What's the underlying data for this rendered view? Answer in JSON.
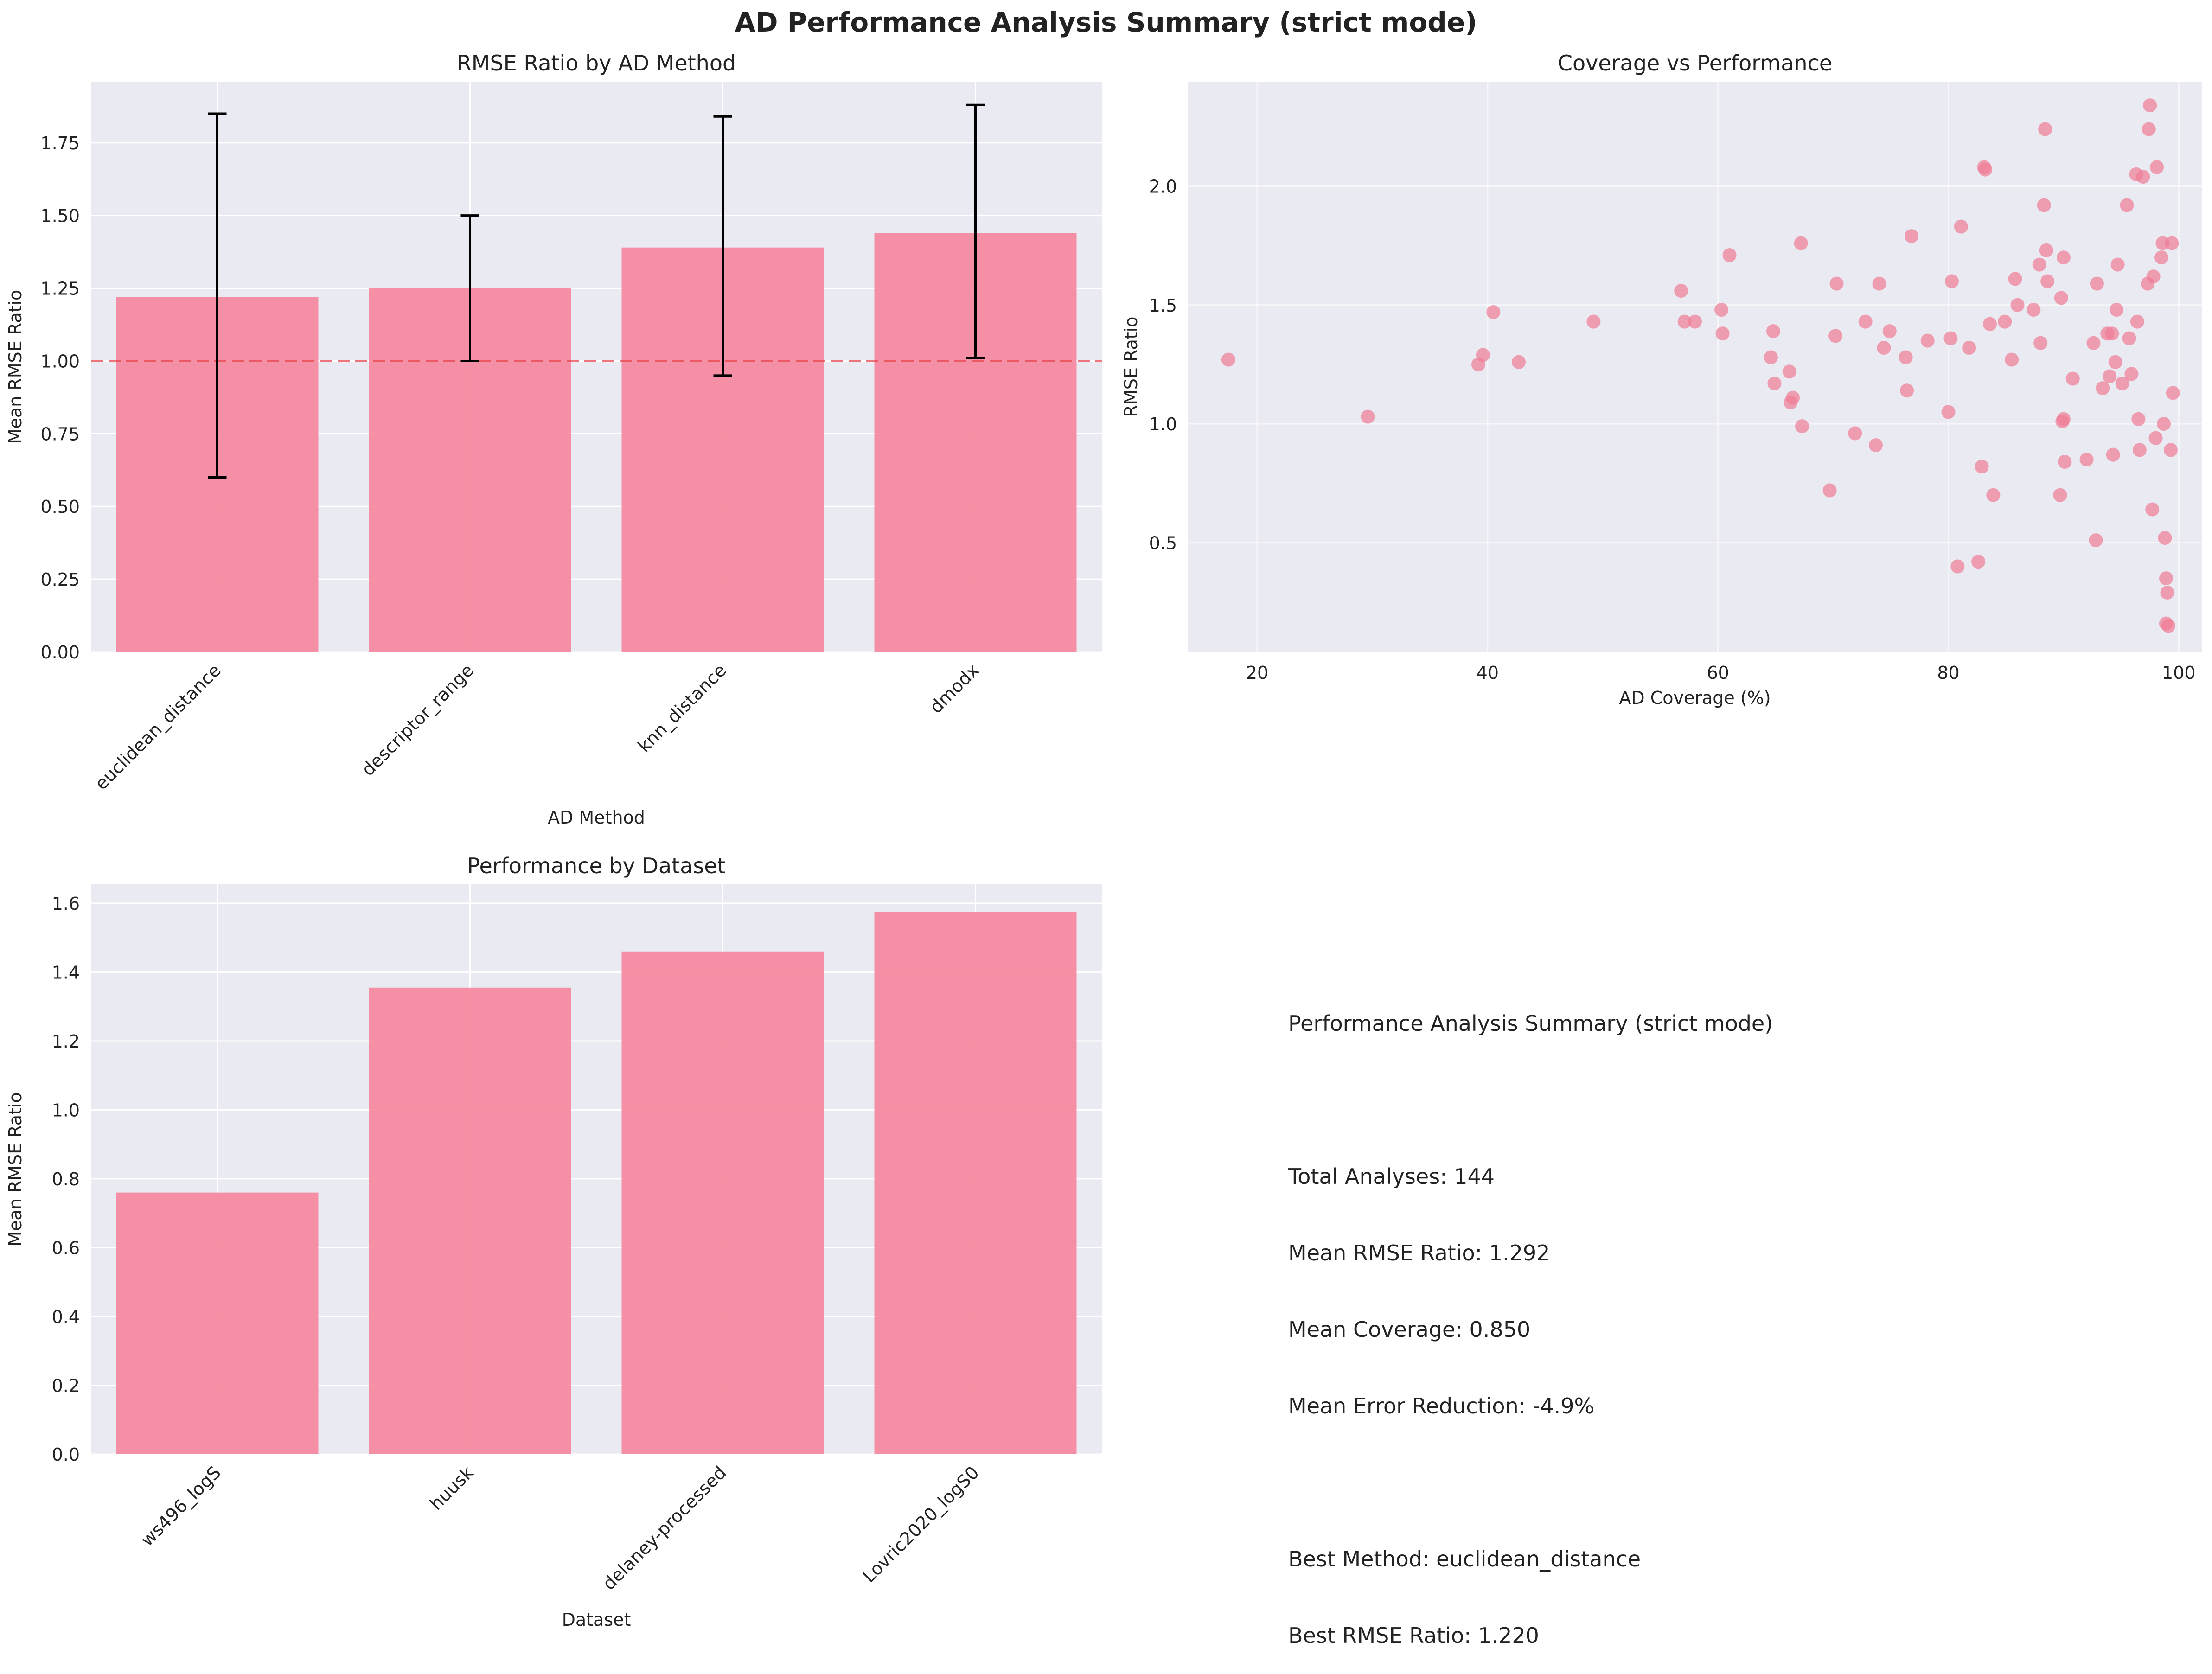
{
  "title": "AD Performance Analysis Summary (strict mode)",
  "colors": {
    "bar": "#f48aa0",
    "panel_bg": "#eaeaf2",
    "grid": "#ffffff",
    "reference_line": "#e8474f",
    "errorbar": "#000000",
    "point": "#f07c96"
  },
  "chart_data": [
    {
      "type": "bar",
      "title": "RMSE Ratio by AD Method",
      "xlabel": "AD Method",
      "ylabel": "Mean RMSE Ratio",
      "categories": [
        "euclidean_distance",
        "descriptor_range",
        "knn_distance",
        "dmodx"
      ],
      "values": [
        1.22,
        1.25,
        1.39,
        1.44
      ],
      "error_low": [
        0.6,
        1.0,
        0.95,
        1.01
      ],
      "error_high": [
        1.85,
        1.5,
        1.84,
        1.88
      ],
      "reference_line": 1.0,
      "ylim": [
        0,
        1.96
      ],
      "yticks": [
        "0.00",
        "0.25",
        "0.50",
        "0.75",
        "1.00",
        "1.25",
        "1.50",
        "1.75"
      ],
      "grid": true
    },
    {
      "type": "scatter",
      "title": "Coverage vs Performance",
      "xlabel": "AD Coverage (%)",
      "ylabel": "RMSE Ratio",
      "xlim": [
        14,
        102
      ],
      "ylim": [
        0.04,
        2.44
      ],
      "xticks": [
        "20",
        "40",
        "60",
        "80",
        "100"
      ],
      "yticks": [
        "0.5",
        "1.0",
        "1.5",
        "2.0"
      ],
      "grid": true,
      "points": [
        [
          17.5,
          1.27
        ],
        [
          29.6,
          1.03
        ],
        [
          39.2,
          1.25
        ],
        [
          39.6,
          1.29
        ],
        [
          40.5,
          1.47
        ],
        [
          42.7,
          1.26
        ],
        [
          49.2,
          1.43
        ],
        [
          56.8,
          1.56
        ],
        [
          57.1,
          1.43
        ],
        [
          58.0,
          1.43
        ],
        [
          60.3,
          1.48
        ],
        [
          60.4,
          1.38
        ],
        [
          61.0,
          1.71
        ],
        [
          64.6,
          1.28
        ],
        [
          64.8,
          1.39
        ],
        [
          64.9,
          1.17
        ],
        [
          66.2,
          1.22
        ],
        [
          66.3,
          1.09
        ],
        [
          66.5,
          1.11
        ],
        [
          67.2,
          1.76
        ],
        [
          67.3,
          0.99
        ],
        [
          69.7,
          0.72
        ],
        [
          70.2,
          1.37
        ],
        [
          70.3,
          1.59
        ],
        [
          71.9,
          0.96
        ],
        [
          72.8,
          1.43
        ],
        [
          73.7,
          0.91
        ],
        [
          74.0,
          1.59
        ],
        [
          74.4,
          1.32
        ],
        [
          74.9,
          1.39
        ],
        [
          76.3,
          1.28
        ],
        [
          76.4,
          1.14
        ],
        [
          76.8,
          1.79
        ],
        [
          78.2,
          1.35
        ],
        [
          80.0,
          1.05
        ],
        [
          80.2,
          1.36
        ],
        [
          80.3,
          1.6
        ],
        [
          80.8,
          0.4
        ],
        [
          81.1,
          1.83
        ],
        [
          81.8,
          1.32
        ],
        [
          82.6,
          0.42
        ],
        [
          82.9,
          0.82
        ],
        [
          83.1,
          2.08
        ],
        [
          83.2,
          2.07
        ],
        [
          83.6,
          1.42
        ],
        [
          83.9,
          0.7
        ],
        [
          84.9,
          1.43
        ],
        [
          85.5,
          1.27
        ],
        [
          85.8,
          1.61
        ],
        [
          86.0,
          1.5
        ],
        [
          87.4,
          1.48
        ],
        [
          87.9,
          1.67
        ],
        [
          88.0,
          1.34
        ],
        [
          88.3,
          1.92
        ],
        [
          88.4,
          2.24
        ],
        [
          88.5,
          1.73
        ],
        [
          88.6,
          1.6
        ],
        [
          89.7,
          0.7
        ],
        [
          89.8,
          1.53
        ],
        [
          89.9,
          1.01
        ],
        [
          90.0,
          1.02
        ],
        [
          90.0,
          1.7
        ],
        [
          90.1,
          0.84
        ],
        [
          90.8,
          1.19
        ],
        [
          92.0,
          0.85
        ],
        [
          92.6,
          1.34
        ],
        [
          92.8,
          0.51
        ],
        [
          92.9,
          1.59
        ],
        [
          93.4,
          1.15
        ],
        [
          93.8,
          1.38
        ],
        [
          94.0,
          1.2
        ],
        [
          94.2,
          1.38
        ],
        [
          94.3,
          0.87
        ],
        [
          94.5,
          1.26
        ],
        [
          94.6,
          1.48
        ],
        [
          94.7,
          1.67
        ],
        [
          95.1,
          1.17
        ],
        [
          95.5,
          1.92
        ],
        [
          95.7,
          1.36
        ],
        [
          95.9,
          1.21
        ],
        [
          96.3,
          2.05
        ],
        [
          96.4,
          1.43
        ],
        [
          96.6,
          0.89
        ],
        [
          96.9,
          2.04
        ],
        [
          96.5,
          1.02
        ],
        [
          97.3,
          1.59
        ],
        [
          97.5,
          2.34
        ],
        [
          97.7,
          0.64
        ],
        [
          97.8,
          1.62
        ],
        [
          98.0,
          0.94
        ],
        [
          98.1,
          2.08
        ],
        [
          98.5,
          1.7
        ],
        [
          98.6,
          1.76
        ],
        [
          98.7,
          1.0
        ],
        [
          98.8,
          0.52
        ],
        [
          98.9,
          0.35
        ],
        [
          99.0,
          0.29
        ],
        [
          98.9,
          0.16
        ],
        [
          99.1,
          0.15
        ],
        [
          99.3,
          0.89
        ],
        [
          99.4,
          1.76
        ],
        [
          99.5,
          1.13
        ],
        [
          97.4,
          2.24
        ]
      ]
    },
    {
      "type": "bar",
      "title": "Performance by Dataset",
      "xlabel": "Dataset",
      "ylabel": "Mean RMSE Ratio",
      "categories": [
        "ws496_logS",
        "huusk",
        "delaney-processed",
        "Lovric2020_logS0"
      ],
      "values": [
        0.76,
        1.355,
        1.46,
        1.575
      ],
      "ylim": [
        0,
        1.655
      ],
      "yticks": [
        "0.0",
        "0.2",
        "0.4",
        "0.6",
        "0.8",
        "1.0",
        "1.2",
        "1.4",
        "1.6"
      ],
      "grid": true
    }
  ],
  "summary": {
    "heading": "Performance Analysis Summary (strict mode)",
    "total_analyses": "Total Analyses: 144",
    "mean_rmse": "Mean RMSE Ratio: 1.292",
    "mean_coverage": "Mean Coverage: 0.850",
    "mean_error_reduction": "Mean Error Reduction: -4.9%",
    "best_method": "Best Method: euclidean_distance",
    "best_rmse": "Best RMSE Ratio: 1.220"
  }
}
